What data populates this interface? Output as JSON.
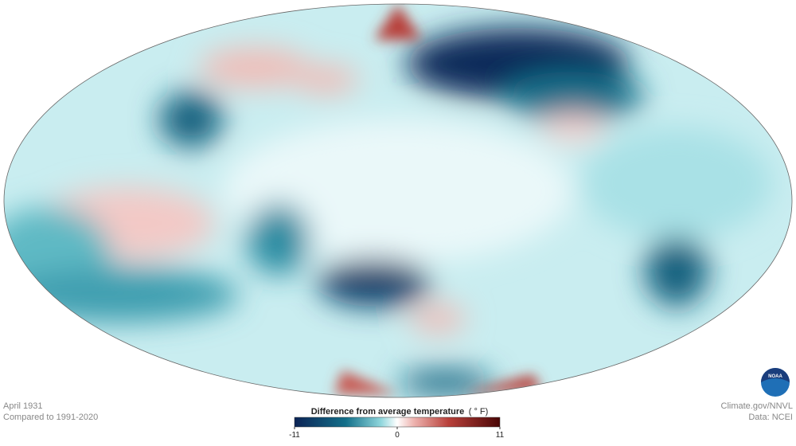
{
  "header": {
    "date": "April 1931",
    "baseline": "Compared to 1991-2020"
  },
  "legend": {
    "title": "Difference from average temperature",
    "unit": "( ° F)",
    "min": -11,
    "max": 11,
    "ticks": [
      -11,
      0,
      11
    ]
  },
  "credits": {
    "source": "Climate.gov/NNVL",
    "data": "Data: NCEI",
    "logo": "NOAA"
  }
}
